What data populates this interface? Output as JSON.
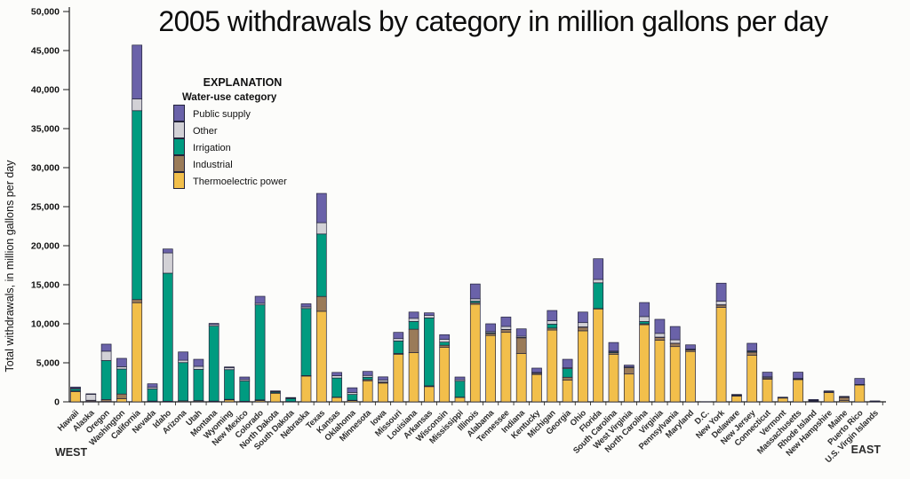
{
  "title": "2005 withdrawals by category in million gallons per day",
  "region_labels": {
    "west": "WEST",
    "east": "EAST"
  },
  "legend": {
    "title": "EXPLANATION",
    "subtitle": "Water-use category",
    "order": [
      "Public supply",
      "Other",
      "Irrigation",
      "Industrial",
      "Thermoelectric power"
    ]
  },
  "colors": {
    "axis": "#1a1a1a",
    "bar_outline": "#23233a",
    "background": "#fcfcfa"
  },
  "chart_data": {
    "type": "bar",
    "stacked": true,
    "title": "2005 withdrawals by category in million gallons per day",
    "xlabel": "",
    "ylabel": "Total withdrawals, in million gallons per day",
    "ylim": [
      0,
      50000
    ],
    "yticks": [
      0,
      5000,
      10000,
      15000,
      20000,
      25000,
      30000,
      35000,
      40000,
      45000,
      50000
    ],
    "grid": false,
    "legend_position": "upper-left-inside",
    "stack_order_bottom_to_top": [
      "Thermoelectric power",
      "Industrial",
      "Irrigation",
      "Other",
      "Public supply"
    ],
    "categories": [
      "Hawaii",
      "Alaska",
      "Oregon",
      "Washington",
      "California",
      "Nevada",
      "Idaho",
      "Arizona",
      "Utah",
      "Montana",
      "Wyoming",
      "New Mexico",
      "Colorado",
      "North Dakota",
      "South Dakota",
      "Nebraska",
      "Texas",
      "Kansas",
      "Oklahoma",
      "Minnesota",
      "Iowa",
      "Missouri",
      "Louisiana",
      "Arkansas",
      "Wisconsin",
      "Mississippi",
      "Illinois",
      "Alabama",
      "Tennessee",
      "Indiana",
      "Kentucky",
      "Michigan",
      "Georgia",
      "Ohio",
      "Florida",
      "South Carolina",
      "West Virginia",
      "North Carolina",
      "Virginia",
      "Pennsylvania",
      "Maryland",
      "D.C.",
      "New York",
      "Delaware",
      "New Jersey",
      "Connecticut",
      "Vermont",
      "Massachusetts",
      "Rhode Island",
      "New Hampshire",
      "Maine",
      "Puerto Rico",
      "U.S. Virgin Islands"
    ],
    "series": [
      {
        "name": "Thermoelectric power",
        "color": "#f2bf4b",
        "values": [
          1300,
          40,
          40,
          400,
          12700,
          60,
          20,
          100,
          100,
          70,
          250,
          40,
          150,
          1100,
          20,
          3300,
          11600,
          550,
          150,
          2700,
          2400,
          6100,
          6300,
          1950,
          7000,
          550,
          12500,
          8500,
          8900,
          6200,
          3500,
          9200,
          2800,
          9100,
          11900,
          6100,
          3560,
          9880,
          7900,
          7080,
          6450,
          0,
          12100,
          720,
          5950,
          2900,
          480,
          2850,
          50,
          1200,
          150,
          2150,
          80
        ]
      },
      {
        "name": "Industrial",
        "color": "#9a7b59",
        "values": [
          100,
          150,
          250,
          600,
          400,
          40,
          60,
          30,
          60,
          30,
          70,
          30,
          100,
          50,
          20,
          60,
          1900,
          50,
          50,
          150,
          120,
          100,
          3000,
          100,
          250,
          50,
          200,
          250,
          350,
          2000,
          150,
          250,
          350,
          450,
          50,
          200,
          810,
          120,
          350,
          400,
          200,
          0,
          300,
          100,
          400,
          150,
          30,
          60,
          80,
          40,
          400,
          30,
          0
        ]
      },
      {
        "name": "Irrigation",
        "color": "#009b80",
        "values": [
          250,
          10,
          5000,
          3200,
          24200,
          1550,
          16400,
          4900,
          4000,
          9600,
          3800,
          2600,
          12170,
          130,
          380,
          8600,
          8000,
          2450,
          750,
          300,
          30,
          1600,
          1000,
          8700,
          400,
          2050,
          200,
          100,
          30,
          50,
          20,
          500,
          1100,
          50,
          3300,
          100,
          10,
          290,
          40,
          30,
          50,
          0,
          40,
          20,
          100,
          30,
          10,
          20,
          10,
          10,
          20,
          20,
          0
        ]
      },
      {
        "name": "Other",
        "color": "#d2d1d6",
        "values": [
          100,
          750,
          1200,
          300,
          1500,
          200,
          2600,
          300,
          390,
          200,
          250,
          190,
          200,
          80,
          80,
          200,
          1450,
          300,
          250,
          230,
          250,
          300,
          400,
          310,
          350,
          180,
          300,
          150,
          380,
          150,
          100,
          450,
          100,
          550,
          430,
          100,
          120,
          630,
          480,
          440,
          50,
          10,
          460,
          30,
          100,
          120,
          30,
          60,
          60,
          50,
          50,
          30,
          20
        ]
      },
      {
        "name": "Public supply",
        "color": "#6a62a9",
        "values": [
          150,
          80,
          900,
          1070,
          6900,
          460,
          500,
          1060,
          900,
          150,
          100,
          320,
          900,
          40,
          50,
          400,
          3750,
          420,
          600,
          520,
          400,
          800,
          800,
          340,
          600,
          350,
          1900,
          1000,
          1200,
          950,
          550,
          1300,
          1100,
          1350,
          2650,
          1100,
          200,
          1800,
          1800,
          1700,
          550,
          0,
          2300,
          80,
          950,
          600,
          50,
          810,
          100,
          100,
          80,
          770,
          10
        ]
      }
    ]
  }
}
